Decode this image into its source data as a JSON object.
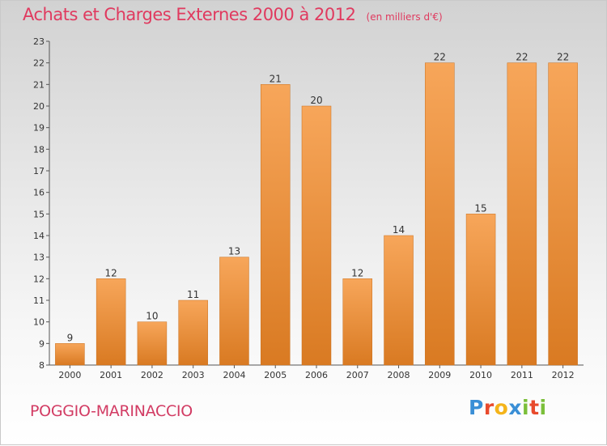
{
  "header": {
    "title": "Achats et Charges Externes 2000 à 2012",
    "unit": "(en milliers d'€)"
  },
  "footer": {
    "place": "POGGIO-MARINACCIO",
    "logo": [
      "P",
      "r",
      "o",
      "x",
      "i",
      "t",
      "i"
    ]
  },
  "colors": {
    "title": "#e03a5f",
    "bar_top": "#f7a65a",
    "bar_bottom": "#d97a22",
    "logo": [
      "#3a8fd6",
      "#e84a2c",
      "#f4b41a",
      "#3a8fd6",
      "#7bbf3a",
      "#e84a2c",
      "#7bbf3a"
    ]
  },
  "chart_data": {
    "type": "bar",
    "title": "Achats et Charges Externes 2000 à 2012",
    "subtitle": "(en milliers d'€)",
    "xlabel": "",
    "ylabel": "",
    "categories": [
      "2000",
      "2001",
      "2002",
      "2003",
      "2004",
      "2005",
      "2006",
      "2007",
      "2008",
      "2009",
      "2010",
      "2011",
      "2012"
    ],
    "values": [
      9,
      12,
      10,
      11,
      13,
      21,
      20,
      12,
      14,
      22,
      15,
      22,
      22
    ],
    "ylim": [
      8,
      23
    ],
    "yticks": [
      8,
      9,
      10,
      11,
      12,
      13,
      14,
      15,
      16,
      17,
      18,
      19,
      20,
      21,
      22,
      23
    ],
    "grid": false,
    "legend": "none"
  }
}
